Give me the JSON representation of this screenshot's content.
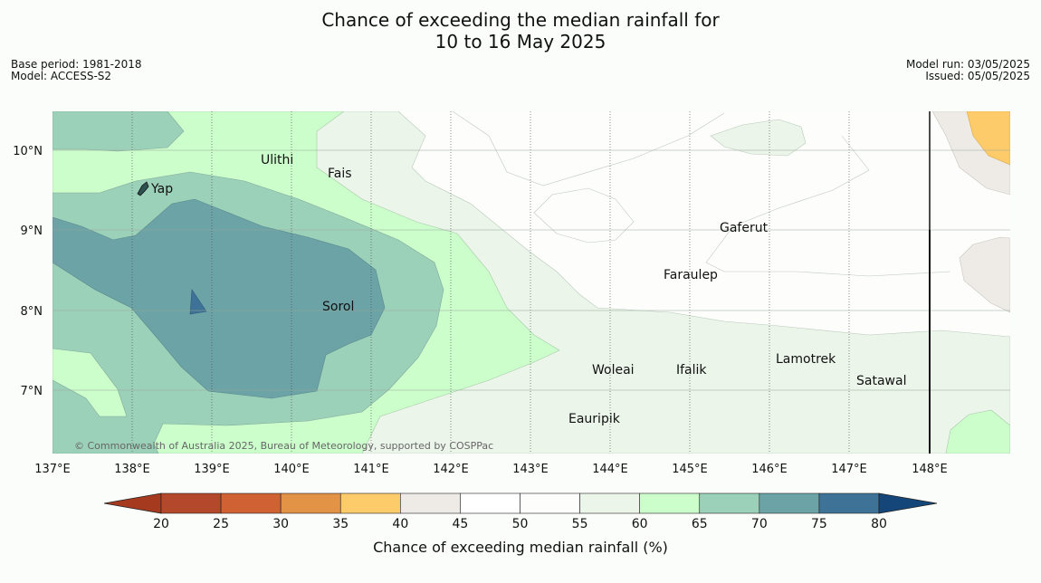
{
  "header": {
    "title_line1": "Chance of exceeding the median rainfall for",
    "title_line2": "10 to 16 May 2025",
    "base_period": "Base period: 1981-2018",
    "model": "Model: ACCESS-S2",
    "model_run": "Model run: 03/05/2025",
    "issued": "Issued: 05/05/2025"
  },
  "map": {
    "lon_ticks": [
      "137°E",
      "138°E",
      "139°E",
      "140°E",
      "141°E",
      "142°E",
      "143°E",
      "144°E",
      "145°E",
      "146°E",
      "147°E",
      "148°E"
    ],
    "lat_ticks": [
      "10°N",
      "9°N",
      "8°N",
      "7°N"
    ],
    "places": [
      "Ulithi",
      "Fais",
      "Yap",
      "Gaferut",
      "Faraulep",
      "Sorol",
      "Lamotrek",
      "Woleai",
      "Ifalik",
      "Satawal",
      "Eauripik"
    ],
    "copyright": "© Commonwealth of Australia 2025, Bureau of Meteorology, supported by COSPPac"
  },
  "legend": {
    "title": "Chance of exceeding median rainfall (%)",
    "ticks": [
      "20",
      "25",
      "30",
      "35",
      "40",
      "45",
      "50",
      "55",
      "60",
      "65",
      "70",
      "75",
      "80"
    ],
    "colors": [
      "#a63a1e",
      "#b3482a",
      "#cf6132",
      "#e29345",
      "#fecb6a",
      "#eeebe6",
      "#ffffff",
      "#fdfefc",
      "#ebf5ea",
      "#ccfecc",
      "#9cd1b9",
      "#6ba3a6",
      "#3e7296",
      "#14467a"
    ]
  }
}
